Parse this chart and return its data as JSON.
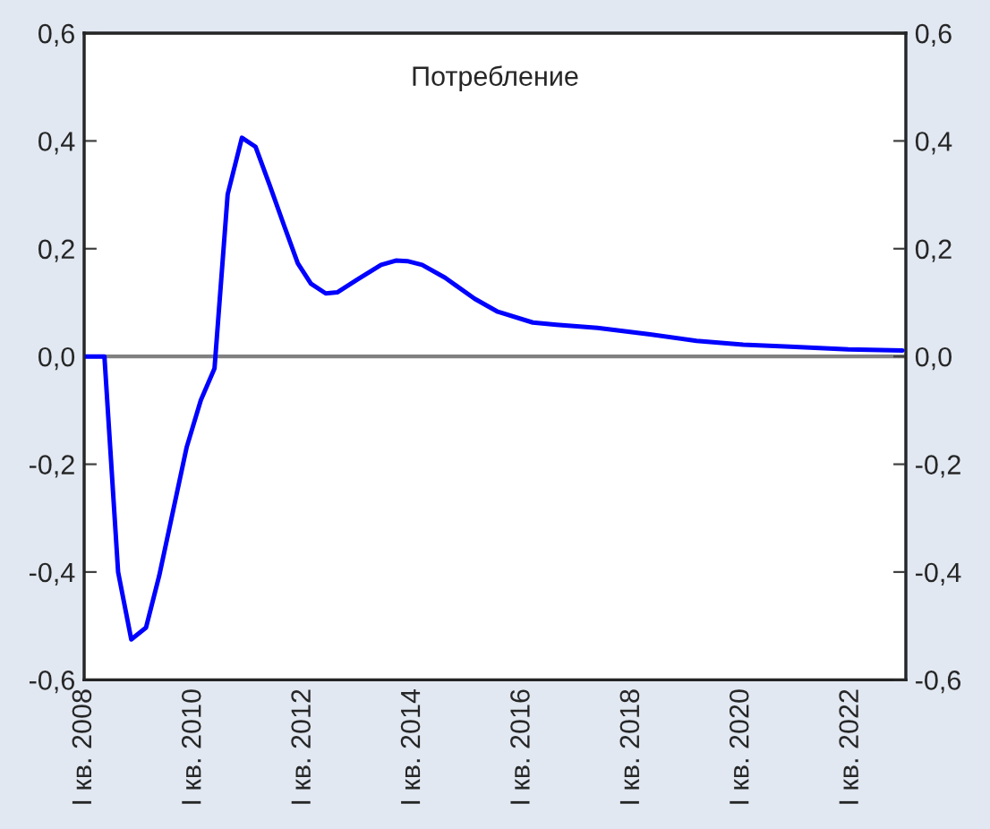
{
  "chart_data": {
    "type": "line",
    "title": "Потребление",
    "x": [
      2008.0,
      2008.37,
      2008.62,
      2008.86,
      2009.13,
      2009.37,
      2009.87,
      2010.13,
      2010.38,
      2010.62,
      2010.88,
      2011.13,
      2011.39,
      2011.66,
      2011.9,
      2012.14,
      2012.41,
      2012.62,
      2012.99,
      2013.42,
      2013.69,
      2013.9,
      2014.17,
      2014.59,
      2015.13,
      2015.55,
      2016.19,
      2016.62,
      2017.37,
      2018.33,
      2019.18,
      2020.03,
      2020.89,
      2021.95,
      2022.94
    ],
    "series": [
      {
        "color": "#0000ff",
        "values": [
          0.0,
          0.0,
          -0.4,
          -0.525,
          -0.503,
          -0.407,
          -0.169,
          -0.081,
          -0.022,
          0.301,
          0.406,
          0.389,
          0.317,
          0.24,
          0.173,
          0.135,
          0.117,
          0.119,
          0.143,
          0.17,
          0.178,
          0.177,
          0.17,
          0.146,
          0.107,
          0.083,
          0.063,
          0.059,
          0.053,
          0.041,
          0.029,
          0.022,
          0.018,
          0.013,
          0.011
        ]
      }
    ],
    "xlim": [
      2008,
      2023
    ],
    "xticks": [
      {
        "value": 2008,
        "label": "I кв. 2008"
      },
      {
        "value": 2010,
        "label": "I кв. 2010"
      },
      {
        "value": 2012,
        "label": "I кв. 2012"
      },
      {
        "value": 2014,
        "label": "I кв. 2014"
      },
      {
        "value": 2016,
        "label": "I кв. 2016"
      },
      {
        "value": 2018,
        "label": "I кв. 2018"
      },
      {
        "value": 2020,
        "label": "I кв. 2020"
      },
      {
        "value": 2022,
        "label": "I кв. 2022"
      }
    ],
    "ylim": [
      -0.6,
      0.6
    ],
    "yticks": [
      {
        "value": -0.6,
        "label": "-0,6"
      },
      {
        "value": -0.4,
        "label": "-0,4"
      },
      {
        "value": -0.2,
        "label": "-0,2"
      },
      {
        "value": 0,
        "label": "0,0"
      },
      {
        "value": 0.2,
        "label": "0,2"
      },
      {
        "value": 0.4,
        "label": "0,4"
      },
      {
        "value": 0.6,
        "label": "0,6"
      }
    ],
    "y2lim": [
      -0.6,
      0.6
    ],
    "y2ticks": [
      {
        "value": -0.6,
        "label": "-0,6"
      },
      {
        "value": -0.4,
        "label": "-0,4"
      },
      {
        "value": -0.2,
        "label": "-0,2"
      },
      {
        "value": 0,
        "label": "0,0"
      },
      {
        "value": 0.2,
        "label": "0,2"
      },
      {
        "value": 0.4,
        "label": "0,4"
      },
      {
        "value": 0.6,
        "label": "0,6"
      }
    ],
    "ref_lines": [
      {
        "axis": "y",
        "value": 0,
        "color": "#808080",
        "line_style": "solid"
      }
    ],
    "grid": false,
    "legend": false,
    "marker": "none",
    "line_style": "solid"
  }
}
